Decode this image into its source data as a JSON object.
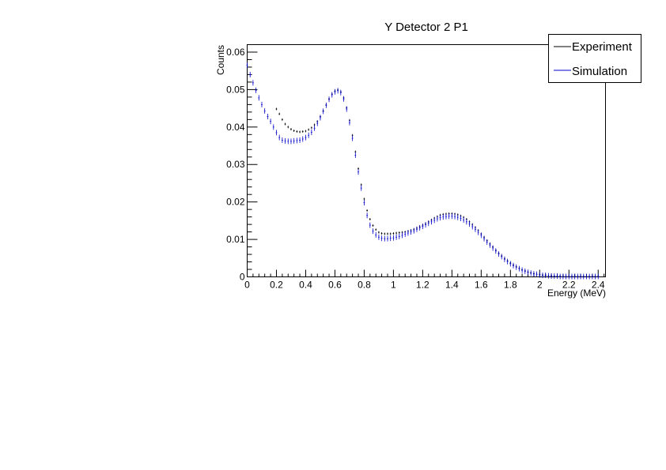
{
  "chart_data": {
    "type": "scatter",
    "title": "Y Detector 2 P1",
    "xlabel": "Energy (MeV)",
    "ylabel": "Counts",
    "xlim": [
      0,
      2.45
    ],
    "ylim": [
      0,
      0.062
    ],
    "x_ticks": [
      0,
      0.2,
      0.4,
      0.6,
      0.8,
      1,
      1.2,
      1.4,
      1.6,
      1.8,
      2,
      2.2,
      2.4
    ],
    "x_tick_labels": [
      "0",
      "0.2",
      "0.4",
      "0.6",
      "0.8",
      "1",
      "1.2",
      "1.4",
      "1.6",
      "1.8",
      "2",
      "2.2",
      "2.4"
    ],
    "y_ticks": [
      0,
      0.01,
      0.02,
      0.03,
      0.04,
      0.05,
      0.06
    ],
    "y_tick_labels": [
      "0",
      "0.01",
      "0.02",
      "0.03",
      "0.04",
      "0.05",
      "0.06"
    ],
    "legend_position": "top-right",
    "series": [
      {
        "name": "Experiment",
        "color": "#000000",
        "x": [
          0.2,
          0.22,
          0.24,
          0.26,
          0.28,
          0.3,
          0.32,
          0.34,
          0.36,
          0.38,
          0.4,
          0.42,
          0.44,
          0.46,
          0.48,
          0.5,
          0.52,
          0.54,
          0.56,
          0.58,
          0.6,
          0.62,
          0.64,
          0.66,
          0.68,
          0.7,
          0.72,
          0.74,
          0.76,
          0.78,
          0.8,
          0.82,
          0.84,
          0.86,
          0.88,
          0.9,
          0.92,
          0.94,
          0.96,
          0.98,
          1.0,
          1.02,
          1.04,
          1.06,
          1.08,
          1.1,
          1.12,
          1.14,
          1.16,
          1.18,
          1.2,
          1.22,
          1.24,
          1.26,
          1.28,
          1.3,
          1.32,
          1.34,
          1.36,
          1.38,
          1.4,
          1.42,
          1.44,
          1.46,
          1.48,
          1.5,
          1.52,
          1.54,
          1.56,
          1.58,
          1.6,
          1.62,
          1.64,
          1.66,
          1.68,
          1.7,
          1.72,
          1.74,
          1.76,
          1.78,
          1.8,
          1.82,
          1.84,
          1.86,
          1.88,
          1.9,
          1.92,
          1.94,
          1.96,
          1.98,
          2.0,
          2.02,
          2.04,
          2.06,
          2.08,
          2.1,
          2.12,
          2.14,
          2.16,
          2.18,
          2.2,
          2.22,
          2.24,
          2.26,
          2.28,
          2.3,
          2.32,
          2.34,
          2.36,
          2.38,
          2.4
        ],
        "y": [
          0.0448,
          0.0435,
          0.042,
          0.0408,
          0.04,
          0.0394,
          0.039,
          0.0388,
          0.0387,
          0.0388,
          0.0389,
          0.0393,
          0.0398,
          0.0406,
          0.0415,
          0.0428,
          0.0443,
          0.0459,
          0.0475,
          0.0488,
          0.0496,
          0.0499,
          0.0494,
          0.0478,
          0.0452,
          0.0418,
          0.0378,
          0.0334,
          0.0289,
          0.0246,
          0.0208,
          0.0177,
          0.0154,
          0.0137,
          0.0126,
          0.0119,
          0.0116,
          0.0115,
          0.0115,
          0.0115,
          0.0116,
          0.0117,
          0.0118,
          0.0119,
          0.012,
          0.0122,
          0.0124,
          0.0127,
          0.013,
          0.0134,
          0.0138,
          0.0142,
          0.0147,
          0.0152,
          0.0157,
          0.0161,
          0.0165,
          0.0167,
          0.0168,
          0.0169,
          0.0169,
          0.0168,
          0.0166,
          0.0163,
          0.0159,
          0.0154,
          0.0147,
          0.014,
          0.0132,
          0.0124,
          0.0115,
          0.0106,
          0.0097,
          0.0088,
          0.008,
          0.0071,
          0.0063,
          0.0056,
          0.0049,
          0.0043,
          0.0037,
          0.0032,
          0.0027,
          0.0023,
          0.0019,
          0.0016,
          0.0013,
          0.0011,
          0.0009,
          0.0007,
          0.0006,
          0.0005,
          0.0004,
          0.0003,
          0.0003,
          0.0002,
          0.0002,
          0.0002,
          0.0001,
          0.0001,
          0.0001,
          0.0001,
          0.0001,
          0.0001,
          0.0001,
          0.0001,
          0.0001,
          0.0001,
          0.0001,
          0.0001,
          0.0001
        ]
      },
      {
        "name": "Simulation",
        "color": "#0000cc",
        "x": [
          0.0,
          0.02,
          0.04,
          0.06,
          0.08,
          0.1,
          0.12,
          0.14,
          0.16,
          0.18,
          0.2,
          0.22,
          0.24,
          0.26,
          0.28,
          0.3,
          0.32,
          0.34,
          0.36,
          0.38,
          0.4,
          0.42,
          0.44,
          0.46,
          0.48,
          0.5,
          0.52,
          0.54,
          0.56,
          0.58,
          0.6,
          0.62,
          0.64,
          0.66,
          0.68,
          0.7,
          0.72,
          0.74,
          0.76,
          0.78,
          0.8,
          0.82,
          0.84,
          0.86,
          0.88,
          0.9,
          0.92,
          0.94,
          0.96,
          0.98,
          1.0,
          1.02,
          1.04,
          1.06,
          1.08,
          1.1,
          1.12,
          1.14,
          1.16,
          1.18,
          1.2,
          1.22,
          1.24,
          1.26,
          1.28,
          1.3,
          1.32,
          1.34,
          1.36,
          1.38,
          1.4,
          1.42,
          1.44,
          1.46,
          1.48,
          1.5,
          1.52,
          1.54,
          1.56,
          1.58,
          1.6,
          1.62,
          1.64,
          1.66,
          1.68,
          1.7,
          1.72,
          1.74,
          1.76,
          1.78,
          1.8,
          1.82,
          1.84,
          1.86,
          1.88,
          1.9,
          1.92,
          1.94,
          1.96,
          1.98,
          2.0,
          2.02,
          2.04,
          2.06,
          2.08,
          2.1,
          2.12,
          2.14,
          2.16,
          2.18,
          2.2,
          2.22,
          2.24,
          2.26,
          2.28,
          2.3,
          2.32,
          2.34,
          2.36,
          2.38,
          2.4
        ],
        "y": [
          0.0565,
          0.054,
          0.0518,
          0.0498,
          0.0478,
          0.046,
          0.0443,
          0.0428,
          0.0415,
          0.04,
          0.0385,
          0.0372,
          0.0365,
          0.0363,
          0.0362,
          0.0362,
          0.0363,
          0.0364,
          0.0365,
          0.0368,
          0.0372,
          0.0378,
          0.0386,
          0.0397,
          0.041,
          0.0425,
          0.0442,
          0.0458,
          0.0474,
          0.0486,
          0.0494,
          0.0497,
          0.0492,
          0.0475,
          0.0448,
          0.0412,
          0.037,
          0.0325,
          0.028,
          0.0237,
          0.0198,
          0.0164,
          0.0138,
          0.0122,
          0.0112,
          0.0106,
          0.0103,
          0.0102,
          0.0102,
          0.0103,
          0.0104,
          0.0106,
          0.0108,
          0.0111,
          0.0114,
          0.0117,
          0.012,
          0.0123,
          0.0127,
          0.0131,
          0.0135,
          0.0139,
          0.0143,
          0.0147,
          0.0151,
          0.0155,
          0.0158,
          0.016,
          0.0161,
          0.0162,
          0.0162,
          0.0161,
          0.0159,
          0.0156,
          0.0152,
          0.0147,
          0.0141,
          0.0134,
          0.0127,
          0.0119,
          0.0111,
          0.0102,
          0.0093,
          0.0085,
          0.0077,
          0.0069,
          0.0061,
          0.0054,
          0.0047,
          0.0041,
          0.0035,
          0.003,
          0.0026,
          0.0022,
          0.0018,
          0.0015,
          0.0012,
          0.001,
          0.0008,
          0.0007,
          0.0005,
          0.0004,
          0.0004,
          0.0003,
          0.0002,
          0.0002,
          0.0002,
          0.0001,
          0.0001,
          0.0001,
          0.0001,
          0.0001,
          0.0001,
          0.0001,
          0.0001,
          0.0001,
          0.0001,
          0.0001,
          0.0001,
          0.0001,
          0.0001
        ]
      }
    ]
  }
}
